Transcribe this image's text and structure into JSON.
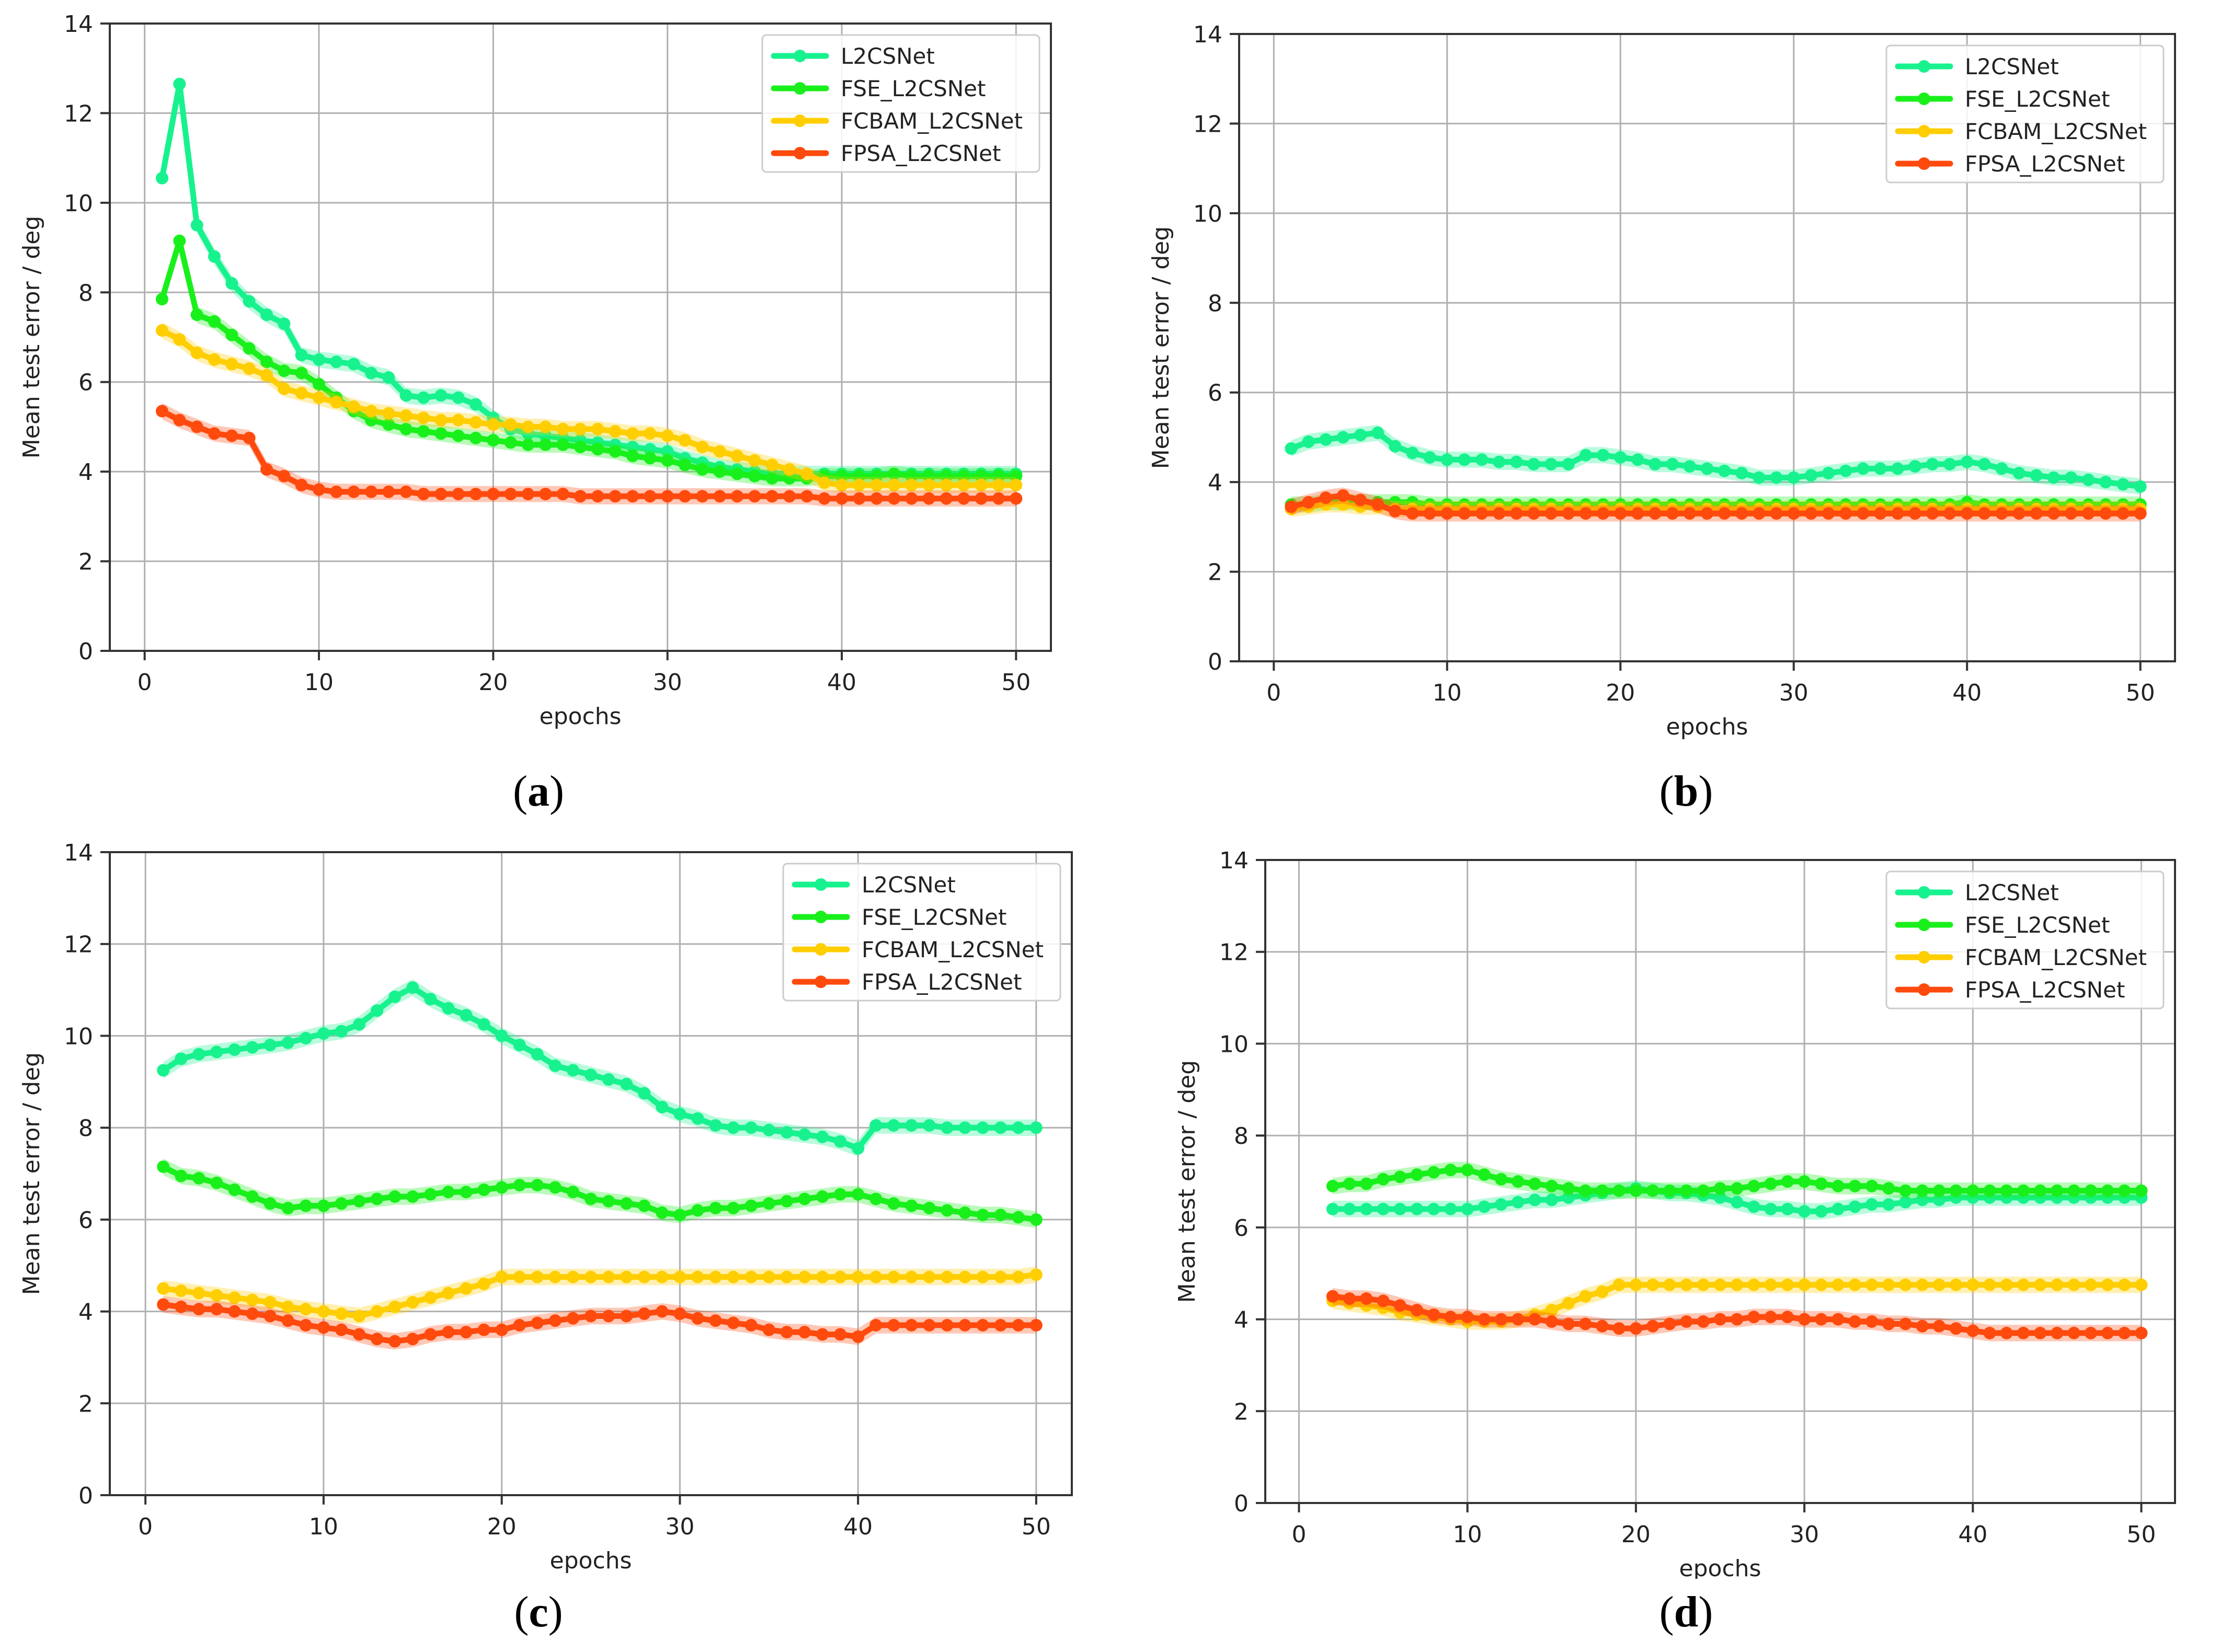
{
  "figure": {
    "panels": [
      {
        "caption_letter": "a"
      },
      {
        "caption_letter": "b"
      },
      {
        "caption_letter": "c"
      },
      {
        "caption_letter": "d"
      }
    ]
  },
  "colors": {
    "L2CSNet": "#17f28e",
    "FSE_L2CSNet": "#19f01b",
    "FCBAM_L2CSNet": "#ffce00",
    "FPSA_L2CSNet": "#ff4a0e"
  },
  "chart_data": [
    {
      "type": "line",
      "panel": "a",
      "xlabel": "epochs",
      "ylabel": "Mean test error / deg",
      "xlim": [
        -2,
        52
      ],
      "ylim": [
        0,
        14
      ],
      "xticks": [
        0,
        10,
        20,
        30,
        40,
        50
      ],
      "yticks": [
        0,
        2,
        4,
        6,
        8,
        10,
        12,
        14
      ],
      "grid": true,
      "legend_position": "top-right",
      "x_start": 1,
      "series": [
        {
          "name": "L2CSNet",
          "values": [
            10.55,
            12.65,
            9.5,
            8.8,
            8.2,
            7.8,
            7.5,
            7.3,
            6.6,
            6.5,
            6.45,
            6.4,
            6.2,
            6.1,
            5.7,
            5.65,
            5.7,
            5.65,
            5.5,
            5.2,
            4.95,
            4.85,
            4.8,
            4.75,
            4.7,
            4.65,
            4.6,
            4.55,
            4.5,
            4.45,
            4.3,
            4.2,
            4.1,
            4.05,
            4.0,
            3.95,
            3.95,
            3.95,
            3.95,
            3.95,
            3.95,
            3.95,
            3.95,
            3.95,
            3.95,
            3.95,
            3.95,
            3.95,
            3.95,
            3.95
          ]
        },
        {
          "name": "FSE_L2CSNet",
          "values": [
            7.85,
            9.15,
            7.5,
            7.35,
            7.05,
            6.75,
            6.45,
            6.25,
            6.2,
            5.95,
            5.65,
            5.35,
            5.15,
            5.05,
            4.95,
            4.9,
            4.85,
            4.8,
            4.75,
            4.7,
            4.65,
            4.6,
            4.6,
            4.6,
            4.55,
            4.5,
            4.45,
            4.35,
            4.3,
            4.25,
            4.15,
            4.05,
            4.0,
            3.95,
            3.9,
            3.85,
            3.85,
            3.85,
            3.9,
            3.9,
            3.9,
            3.9,
            3.95,
            3.9,
            3.9,
            3.9,
            3.9,
            3.9,
            3.9,
            3.9
          ]
        },
        {
          "name": "FCBAM_L2CSNet",
          "values": [
            7.15,
            6.95,
            6.65,
            6.5,
            6.4,
            6.3,
            6.15,
            5.85,
            5.75,
            5.65,
            5.55,
            5.45,
            5.35,
            5.3,
            5.25,
            5.2,
            5.15,
            5.15,
            5.1,
            5.05,
            5.05,
            5.0,
            5.0,
            4.95,
            4.95,
            4.95,
            4.9,
            4.85,
            4.85,
            4.8,
            4.7,
            4.55,
            4.45,
            4.35,
            4.25,
            4.15,
            4.05,
            3.95,
            3.75,
            3.7,
            3.7,
            3.7,
            3.7,
            3.7,
            3.7,
            3.7,
            3.7,
            3.7,
            3.7,
            3.7
          ]
        },
        {
          "name": "FPSA_L2CSNet",
          "values": [
            5.35,
            5.15,
            5.0,
            4.85,
            4.8,
            4.75,
            4.05,
            3.9,
            3.7,
            3.6,
            3.55,
            3.55,
            3.55,
            3.55,
            3.55,
            3.5,
            3.5,
            3.5,
            3.5,
            3.5,
            3.5,
            3.5,
            3.5,
            3.5,
            3.45,
            3.45,
            3.45,
            3.45,
            3.45,
            3.45,
            3.45,
            3.45,
            3.45,
            3.45,
            3.45,
            3.45,
            3.45,
            3.45,
            3.4,
            3.4,
            3.4,
            3.4,
            3.4,
            3.4,
            3.4,
            3.4,
            3.4,
            3.4,
            3.4,
            3.4
          ]
        }
      ]
    },
    {
      "type": "line",
      "panel": "b",
      "xlabel": "epochs",
      "ylabel": "Mean test error / deg",
      "xlim": [
        -2,
        52
      ],
      "ylim": [
        0,
        14
      ],
      "xticks": [
        0,
        10,
        20,
        30,
        40,
        50
      ],
      "yticks": [
        0,
        2,
        4,
        6,
        8,
        10,
        12,
        14
      ],
      "grid": true,
      "legend_position": "top-right",
      "x_start": 1,
      "series": [
        {
          "name": "L2CSNet",
          "values": [
            4.75,
            4.9,
            4.95,
            5.0,
            5.05,
            5.1,
            4.8,
            4.65,
            4.55,
            4.5,
            4.5,
            4.5,
            4.45,
            4.45,
            4.4,
            4.4,
            4.4,
            4.6,
            4.6,
            4.55,
            4.5,
            4.4,
            4.4,
            4.35,
            4.3,
            4.25,
            4.2,
            4.1,
            4.1,
            4.1,
            4.15,
            4.2,
            4.25,
            4.3,
            4.3,
            4.3,
            4.35,
            4.4,
            4.4,
            4.45,
            4.4,
            4.3,
            4.2,
            4.15,
            4.1,
            4.1,
            4.05,
            4.0,
            3.95,
            3.9
          ]
        },
        {
          "name": "FSE_L2CSNet",
          "values": [
            3.5,
            3.5,
            3.55,
            3.55,
            3.55,
            3.55,
            3.55,
            3.55,
            3.5,
            3.5,
            3.5,
            3.5,
            3.5,
            3.5,
            3.5,
            3.5,
            3.5,
            3.5,
            3.5,
            3.5,
            3.5,
            3.5,
            3.5,
            3.5,
            3.5,
            3.5,
            3.5,
            3.5,
            3.5,
            3.5,
            3.5,
            3.5,
            3.5,
            3.5,
            3.5,
            3.5,
            3.5,
            3.5,
            3.5,
            3.55,
            3.5,
            3.5,
            3.5,
            3.5,
            3.5,
            3.5,
            3.5,
            3.5,
            3.5,
            3.5
          ]
        },
        {
          "name": "FCBAM_L2CSNet",
          "values": [
            3.4,
            3.45,
            3.5,
            3.5,
            3.45,
            3.45,
            3.4,
            3.4,
            3.4,
            3.4,
            3.4,
            3.4,
            3.4,
            3.4,
            3.4,
            3.4,
            3.4,
            3.4,
            3.4,
            3.4,
            3.4,
            3.4,
            3.4,
            3.4,
            3.4,
            3.4,
            3.4,
            3.4,
            3.4,
            3.4,
            3.4,
            3.4,
            3.4,
            3.4,
            3.4,
            3.4,
            3.4,
            3.4,
            3.4,
            3.4,
            3.4,
            3.4,
            3.4,
            3.4,
            3.4,
            3.4,
            3.4,
            3.4,
            3.4,
            3.4
          ]
        },
        {
          "name": "FPSA_L2CSNet",
          "values": [
            3.45,
            3.55,
            3.65,
            3.7,
            3.6,
            3.5,
            3.35,
            3.3,
            3.3,
            3.3,
            3.3,
            3.3,
            3.3,
            3.3,
            3.3,
            3.3,
            3.3,
            3.3,
            3.3,
            3.3,
            3.3,
            3.3,
            3.3,
            3.3,
            3.3,
            3.3,
            3.3,
            3.3,
            3.3,
            3.3,
            3.3,
            3.3,
            3.3,
            3.3,
            3.3,
            3.3,
            3.3,
            3.3,
            3.3,
            3.3,
            3.3,
            3.3,
            3.3,
            3.3,
            3.3,
            3.3,
            3.3,
            3.3,
            3.3,
            3.3
          ]
        }
      ]
    },
    {
      "type": "line",
      "panel": "c",
      "xlabel": "epochs",
      "ylabel": "Mean test error / deg",
      "xlim": [
        -2,
        52
      ],
      "ylim": [
        0,
        14
      ],
      "xticks": [
        0,
        10,
        20,
        30,
        40,
        50
      ],
      "yticks": [
        0,
        2,
        4,
        6,
        8,
        10,
        12,
        14
      ],
      "grid": true,
      "legend_position": "top-right",
      "x_start": 1,
      "series": [
        {
          "name": "L2CSNet",
          "values": [
            9.25,
            9.5,
            9.6,
            9.65,
            9.7,
            9.75,
            9.8,
            9.85,
            9.95,
            10.05,
            10.1,
            10.25,
            10.55,
            10.85,
            11.05,
            10.8,
            10.6,
            10.45,
            10.25,
            10.0,
            9.8,
            9.6,
            9.35,
            9.25,
            9.15,
            9.05,
            8.95,
            8.75,
            8.45,
            8.3,
            8.2,
            8.05,
            8.0,
            8.0,
            7.95,
            7.9,
            7.85,
            7.8,
            7.7,
            7.55,
            8.05,
            8.05,
            8.05,
            8.05,
            8.0,
            8.0,
            8.0,
            8.0,
            8.0,
            8.0
          ]
        },
        {
          "name": "FSE_L2CSNet",
          "values": [
            7.15,
            6.95,
            6.9,
            6.8,
            6.65,
            6.5,
            6.35,
            6.25,
            6.3,
            6.3,
            6.35,
            6.4,
            6.45,
            6.5,
            6.5,
            6.55,
            6.6,
            6.6,
            6.65,
            6.7,
            6.75,
            6.75,
            6.7,
            6.6,
            6.45,
            6.4,
            6.35,
            6.3,
            6.15,
            6.1,
            6.2,
            6.25,
            6.25,
            6.3,
            6.35,
            6.4,
            6.45,
            6.5,
            6.55,
            6.55,
            6.45,
            6.35,
            6.3,
            6.25,
            6.2,
            6.15,
            6.1,
            6.1,
            6.05,
            6.0
          ]
        },
        {
          "name": "FCBAM_L2CSNet",
          "values": [
            4.5,
            4.45,
            4.4,
            4.35,
            4.3,
            4.25,
            4.2,
            4.1,
            4.05,
            4.0,
            3.95,
            3.9,
            4.0,
            4.1,
            4.2,
            4.3,
            4.4,
            4.5,
            4.6,
            4.75,
            4.75,
            4.75,
            4.75,
            4.75,
            4.75,
            4.75,
            4.75,
            4.75,
            4.75,
            4.75,
            4.75,
            4.75,
            4.75,
            4.75,
            4.75,
            4.75,
            4.75,
            4.75,
            4.75,
            4.75,
            4.75,
            4.75,
            4.75,
            4.75,
            4.75,
            4.75,
            4.75,
            4.75,
            4.75,
            4.8
          ]
        },
        {
          "name": "FPSA_L2CSNet",
          "values": [
            4.15,
            4.1,
            4.05,
            4.05,
            4.0,
            3.95,
            3.9,
            3.8,
            3.7,
            3.65,
            3.6,
            3.5,
            3.4,
            3.35,
            3.4,
            3.5,
            3.55,
            3.55,
            3.6,
            3.6,
            3.7,
            3.75,
            3.8,
            3.85,
            3.9,
            3.9,
            3.9,
            3.95,
            4.0,
            3.95,
            3.85,
            3.8,
            3.75,
            3.7,
            3.6,
            3.55,
            3.55,
            3.5,
            3.5,
            3.45,
            3.7,
            3.7,
            3.7,
            3.7,
            3.7,
            3.7,
            3.7,
            3.7,
            3.7,
            3.7
          ]
        }
      ]
    },
    {
      "type": "line",
      "panel": "d",
      "xlabel": "epochs",
      "ylabel": "Mean test error / deg",
      "xlim": [
        -2,
        52
      ],
      "ylim": [
        0,
        14
      ],
      "xticks": [
        0,
        10,
        20,
        30,
        40,
        50
      ],
      "yticks": [
        0,
        2,
        4,
        6,
        8,
        10,
        12,
        14
      ],
      "grid": true,
      "legend_position": "top-right",
      "x_start": 2,
      "series": [
        {
          "name": "L2CSNet",
          "values": [
            6.4,
            6.4,
            6.4,
            6.4,
            6.4,
            6.4,
            6.4,
            6.4,
            6.4,
            6.45,
            6.5,
            6.55,
            6.6,
            6.6,
            6.65,
            6.7,
            6.75,
            6.8,
            6.85,
            6.8,
            6.75,
            6.75,
            6.7,
            6.65,
            6.55,
            6.45,
            6.4,
            6.4,
            6.35,
            6.35,
            6.4,
            6.45,
            6.5,
            6.5,
            6.55,
            6.6,
            6.6,
            6.65,
            6.65,
            6.65,
            6.65,
            6.65,
            6.65,
            6.65,
            6.65,
            6.65,
            6.65,
            6.65,
            6.65
          ]
        },
        {
          "name": "FSE_L2CSNet",
          "values": [
            6.9,
            6.95,
            6.95,
            7.05,
            7.1,
            7.15,
            7.2,
            7.25,
            7.25,
            7.15,
            7.05,
            7.0,
            6.95,
            6.9,
            6.85,
            6.8,
            6.8,
            6.8,
            6.8,
            6.8,
            6.8,
            6.8,
            6.8,
            6.85,
            6.85,
            6.9,
            6.95,
            7.0,
            7.0,
            6.95,
            6.9,
            6.9,
            6.9,
            6.85,
            6.8,
            6.8,
            6.8,
            6.8,
            6.8,
            6.8,
            6.8,
            6.8,
            6.8,
            6.8,
            6.8,
            6.8,
            6.8,
            6.8,
            6.8
          ]
        },
        {
          "name": "FCBAM_L2CSNet",
          "values": [
            4.4,
            4.35,
            4.3,
            4.25,
            4.15,
            4.1,
            4.05,
            4.0,
            3.95,
            3.95,
            3.95,
            4.0,
            4.1,
            4.2,
            4.35,
            4.5,
            4.6,
            4.75,
            4.75,
            4.75,
            4.75,
            4.75,
            4.75,
            4.75,
            4.75,
            4.75,
            4.75,
            4.75,
            4.75,
            4.75,
            4.75,
            4.75,
            4.75,
            4.75,
            4.75,
            4.75,
            4.75,
            4.75,
            4.75,
            4.75,
            4.75,
            4.75,
            4.75,
            4.75,
            4.75,
            4.75,
            4.75,
            4.75,
            4.75
          ]
        },
        {
          "name": "FPSA_L2CSNet",
          "values": [
            4.5,
            4.45,
            4.45,
            4.4,
            4.3,
            4.2,
            4.1,
            4.05,
            4.05,
            4.0,
            4.0,
            4.0,
            4.0,
            3.95,
            3.9,
            3.9,
            3.85,
            3.8,
            3.8,
            3.85,
            3.9,
            3.95,
            3.95,
            4.0,
            4.0,
            4.05,
            4.05,
            4.05,
            4.0,
            4.0,
            4.0,
            3.95,
            3.95,
            3.9,
            3.9,
            3.85,
            3.85,
            3.8,
            3.75,
            3.7,
            3.7,
            3.7,
            3.7,
            3.7,
            3.7,
            3.7,
            3.7,
            3.7,
            3.7
          ]
        }
      ]
    }
  ]
}
